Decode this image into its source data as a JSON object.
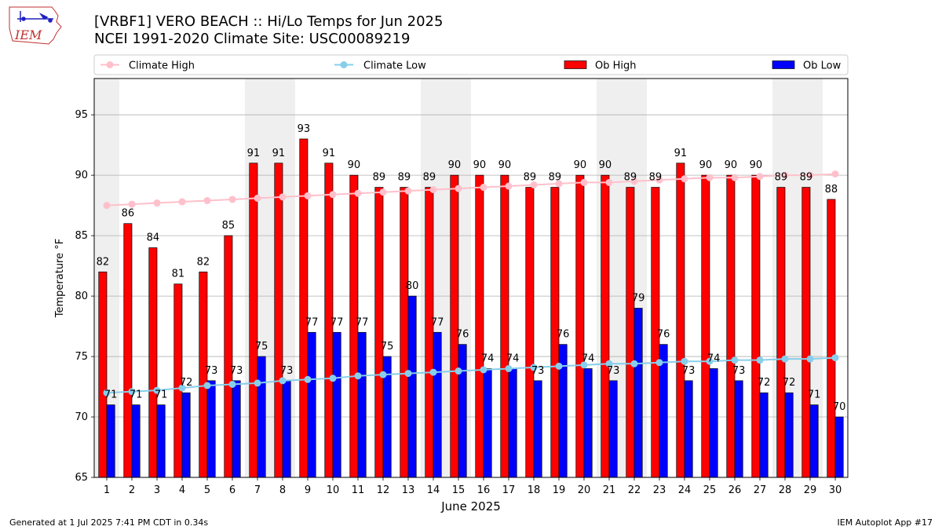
{
  "header": {
    "title": "[VRBF1] VERO BEACH :: Hi/Lo Temps for Jun 2025",
    "subtitle": "NCEI 1991-2020 Climate Site: USC00089219"
  },
  "logo": {
    "text": "IEM",
    "icon": "iowa-state-map-logo"
  },
  "footer": {
    "left": "Generated at 1 Jul 2025 7:41 PM CDT in 0.34s",
    "right": "IEM Autoplot App #17"
  },
  "chart_data": {
    "type": "bar",
    "xlabel": "June 2025",
    "ylabel": "Temperature °F",
    "ylim": [
      65,
      98
    ],
    "yticks": [
      65,
      70,
      75,
      80,
      85,
      90,
      95
    ],
    "grid": true,
    "legend_position": "top",
    "categories": [
      "1",
      "2",
      "3",
      "4",
      "5",
      "6",
      "7",
      "8",
      "9",
      "10",
      "11",
      "12",
      "13",
      "14",
      "15",
      "16",
      "17",
      "18",
      "19",
      "20",
      "21",
      "22",
      "23",
      "24",
      "25",
      "26",
      "27",
      "28",
      "29",
      "30"
    ],
    "weekend_days": [
      1,
      7,
      8,
      14,
      15,
      21,
      22,
      28,
      29
    ],
    "bar_series": [
      {
        "name": "Ob High",
        "color": "#ff0000",
        "values": [
          82,
          86,
          84,
          81,
          82,
          85,
          91,
          91,
          93,
          91,
          90,
          89,
          89,
          89,
          90,
          90,
          90,
          89,
          89,
          90,
          90,
          89,
          89,
          91,
          90,
          90,
          90,
          89,
          89,
          88
        ]
      },
      {
        "name": "Ob Low",
        "color": "#0000ff",
        "values": [
          71,
          71,
          71,
          72,
          73,
          73,
          75,
          73,
          77,
          77,
          77,
          75,
          80,
          77,
          76,
          74,
          74,
          73,
          76,
          74,
          73,
          79,
          76,
          73,
          74,
          73,
          72,
          72,
          71,
          70
        ]
      }
    ],
    "line_series": [
      {
        "name": "Climate High",
        "color": "#ffc0cb",
        "values": [
          87.5,
          87.6,
          87.7,
          87.8,
          87.9,
          88.0,
          88.1,
          88.2,
          88.3,
          88.4,
          88.5,
          88.6,
          88.7,
          88.8,
          88.9,
          89.0,
          89.1,
          89.2,
          89.3,
          89.4,
          89.4,
          89.5,
          89.6,
          89.7,
          89.8,
          89.8,
          89.9,
          90.0,
          90.0,
          90.1
        ]
      },
      {
        "name": "Climate Low",
        "color": "#87ceeb",
        "values": [
          72.0,
          72.1,
          72.2,
          72.4,
          72.6,
          72.7,
          72.8,
          73.0,
          73.1,
          73.2,
          73.4,
          73.5,
          73.6,
          73.7,
          73.8,
          73.9,
          74.0,
          74.1,
          74.2,
          74.3,
          74.4,
          74.4,
          74.5,
          74.6,
          74.6,
          74.7,
          74.7,
          74.8,
          74.8,
          74.9
        ]
      }
    ],
    "colors": {
      "weekend_shade": "#efefef",
      "grid": "#b0b0b0"
    }
  }
}
